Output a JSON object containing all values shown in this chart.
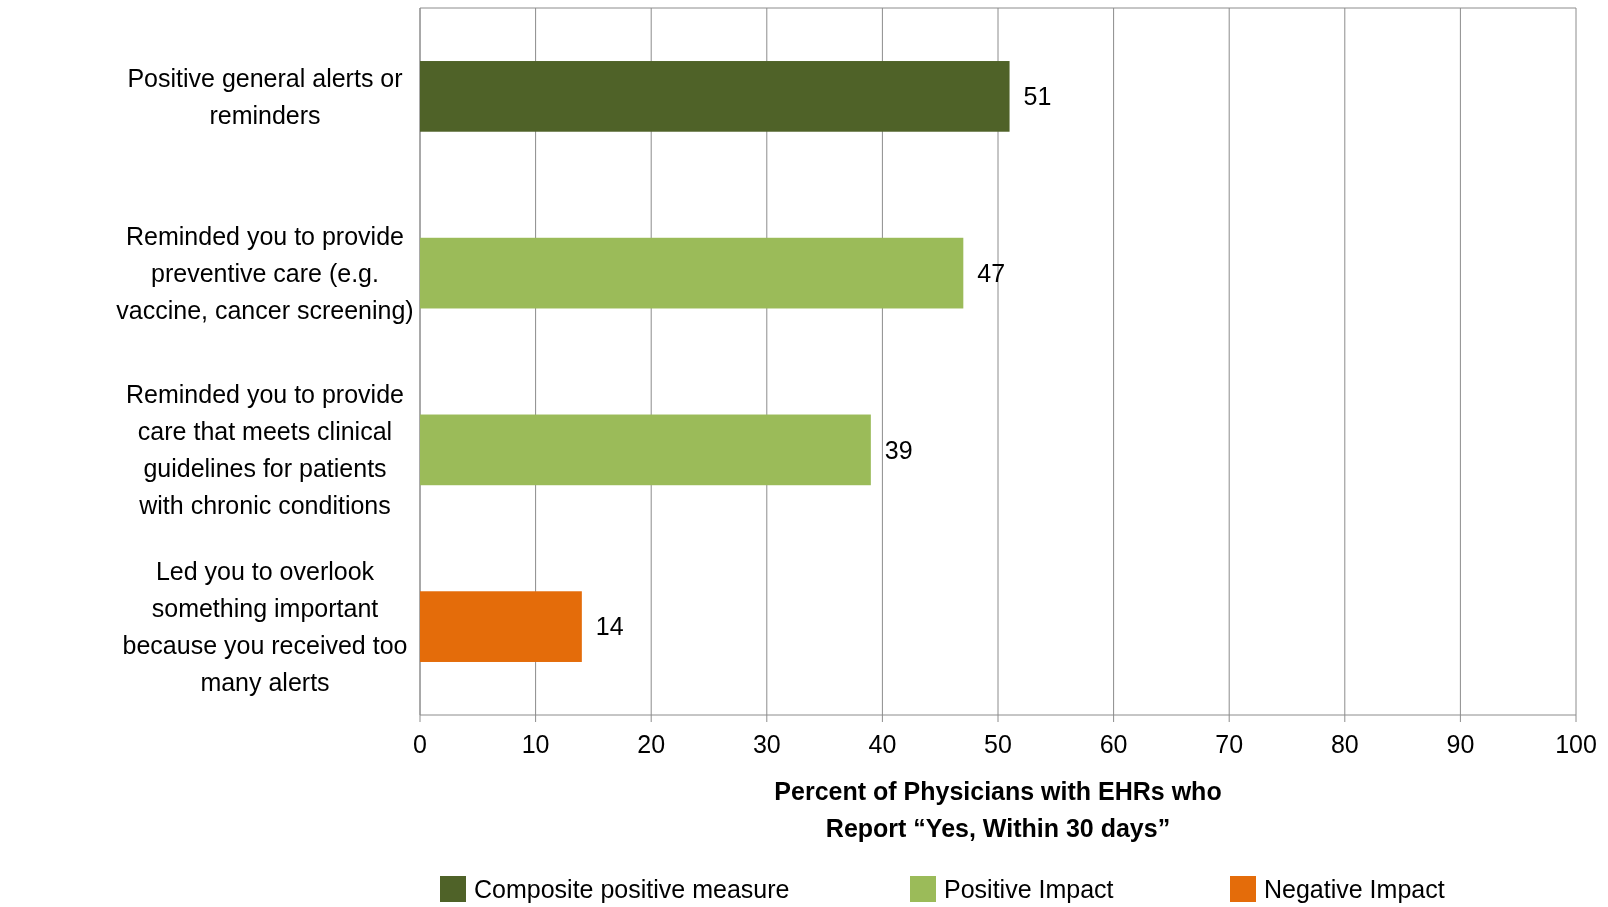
{
  "chart_data": {
    "type": "bar",
    "orientation": "horizontal",
    "xlabel": "Percent of Physicians with EHRs who Report “Yes, Within 30 days”",
    "categories": [
      "Positive general alerts or reminders",
      "Reminded you to provide preventive care (e.g. vaccine, cancer screening)",
      "Reminded you to provide care that meets clinical guidelines for patients with chronic conditions",
      "Led you to overlook something important because you received too many alerts"
    ],
    "series": [
      {
        "name": "Composite positive measure",
        "color": "#4f6228",
        "values": [
          51,
          null,
          null,
          null
        ]
      },
      {
        "name": "Positive Impact",
        "color": "#9bbb59",
        "values": [
          null,
          47,
          39,
          null
        ]
      },
      {
        "name": "Negative Impact",
        "color": "#e46c0a",
        "values": [
          null,
          null,
          null,
          14
        ]
      }
    ],
    "xlim": [
      0,
      100
    ],
    "xticks": [
      0,
      10,
      20,
      30,
      40,
      50,
      60,
      70,
      80,
      90,
      100
    ],
    "grid": "x",
    "data_labels": true,
    "legend": "bottom"
  }
}
